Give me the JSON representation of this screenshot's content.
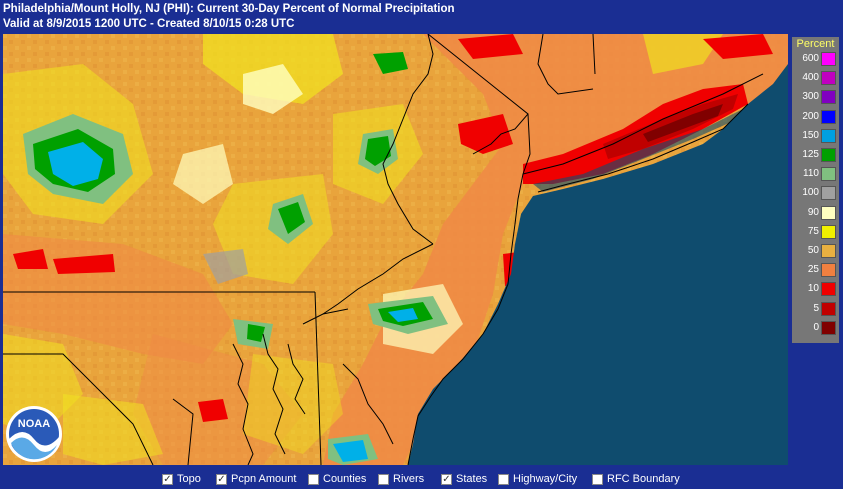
{
  "header": {
    "title": "Philadelphia/Mount Holly, NJ (PHI): Current 30-Day Percent of Normal Precipitation",
    "subtitle": "Valid at 8/9/2015 1200 UTC - Created 8/10/15 0:28 UTC"
  },
  "legend": {
    "title": "Percent",
    "items": [
      {
        "label": "600",
        "color": "#ff00ff"
      },
      {
        "label": "400",
        "color": "#c000c0"
      },
      {
        "label": "300",
        "color": "#8000c0"
      },
      {
        "label": "200",
        "color": "#0000ff"
      },
      {
        "label": "150",
        "color": "#00a0e0"
      },
      {
        "label": "125",
        "color": "#00a000"
      },
      {
        "label": "110",
        "color": "#80c080"
      },
      {
        "label": "100",
        "color": "#a0a0a0"
      },
      {
        "label": "90",
        "color": "#ffffc0"
      },
      {
        "label": "75",
        "color": "#f0f000"
      },
      {
        "label": "50",
        "color": "#e8b040"
      },
      {
        "label": "25",
        "color": "#f08040"
      },
      {
        "label": "10",
        "color": "#f00000"
      },
      {
        "label": "5",
        "color": "#c00000"
      },
      {
        "label": "0",
        "color": "#800000"
      }
    ]
  },
  "layer_toggles": [
    {
      "label": "Topo",
      "checked": true
    },
    {
      "label": "Pcpn Amount",
      "checked": true
    },
    {
      "label": "Counties",
      "checked": false
    },
    {
      "label": "Rivers",
      "checked": false
    },
    {
      "label": "States",
      "checked": true
    },
    {
      "label": "Highway/City",
      "checked": false
    },
    {
      "label": "RFC Boundary",
      "checked": false
    }
  ],
  "logo": {
    "text": "NOAA"
  },
  "colors": {
    "background": "#1a2e93",
    "ocean": "#0f4c6e",
    "legend_text": "#ffff66"
  }
}
